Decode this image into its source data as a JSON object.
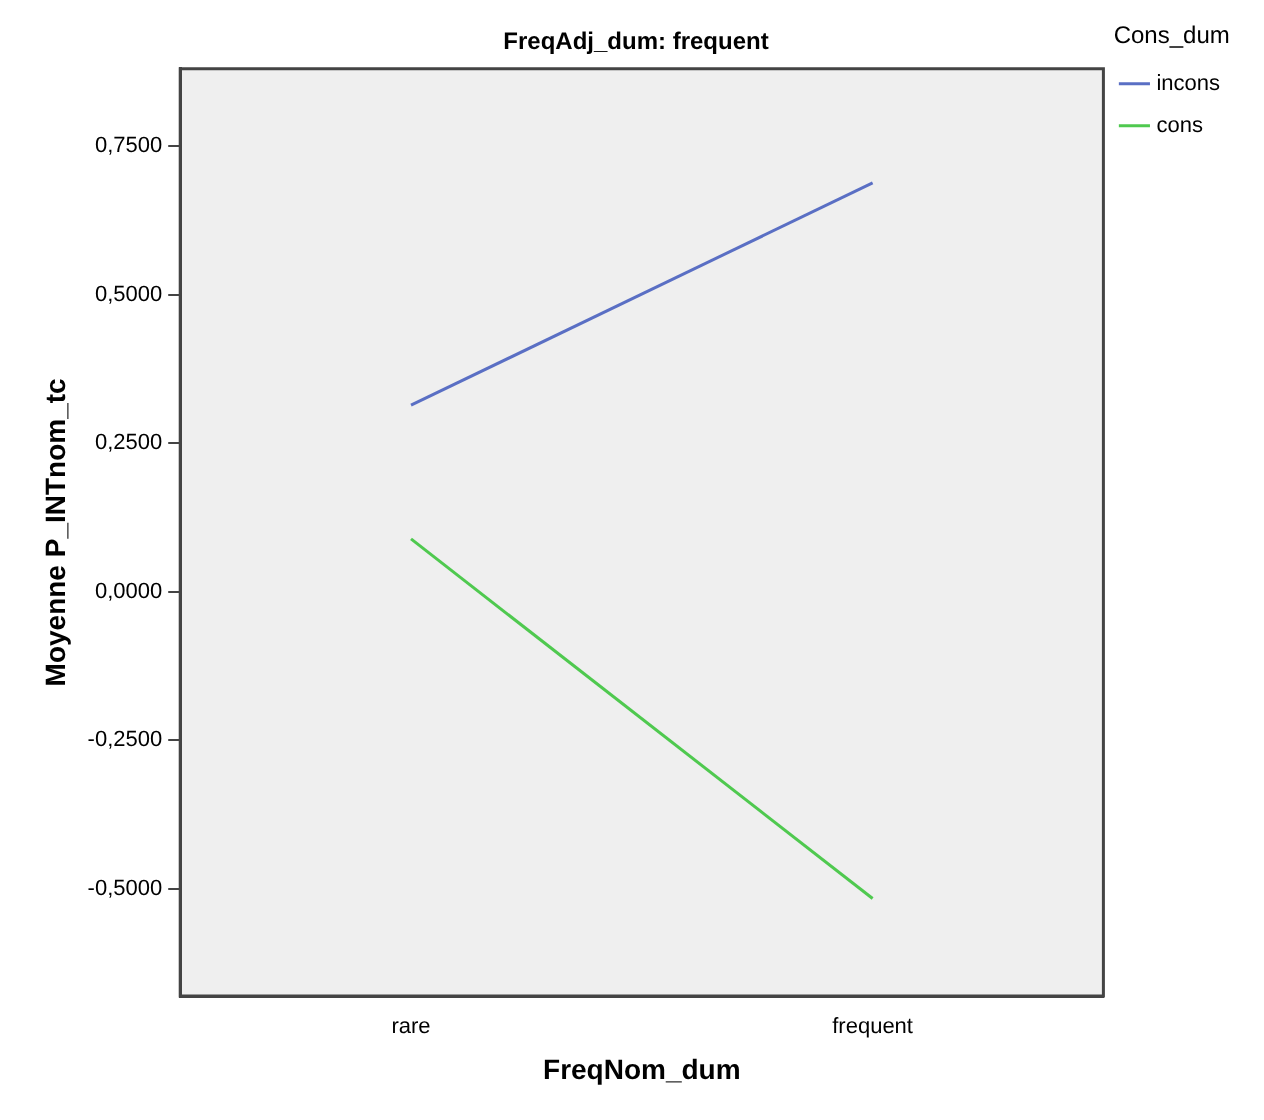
{
  "chart_data": {
    "type": "line",
    "title": "FreqAdj_dum: frequent",
    "xlabel": "FreqNom_dum",
    "ylabel": "Moyenne P_INTnom_tc",
    "legend_title": "Cons_dum",
    "categories": [
      "rare",
      "frequent"
    ],
    "series": [
      {
        "name": "incons",
        "color": "#5a6fc4",
        "values": [
          0.314,
          0.688
        ]
      },
      {
        "name": "cons",
        "color": "#4fc94f",
        "values": [
          0.089,
          -0.516
        ]
      }
    ],
    "ylim": [
      -0.68,
      0.88
    ],
    "yticks": [
      {
        "value": -0.5,
        "label": "-0,5000"
      },
      {
        "value": -0.25,
        "label": "-0,2500"
      },
      {
        "value": 0,
        "label": "0,0000"
      },
      {
        "value": 0.25,
        "label": "0,2500"
      },
      {
        "value": 0.5,
        "label": "0,5000"
      },
      {
        "value": 0.75,
        "label": "0,7500"
      }
    ],
    "grid": false,
    "legend": "top right",
    "marker": "none",
    "line_style": "solid"
  }
}
